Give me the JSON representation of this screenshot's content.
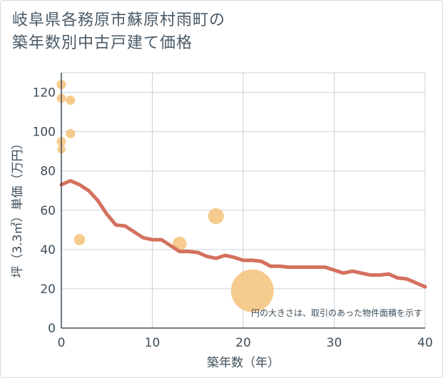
{
  "title_line1": "岐阜県各務原市蘇原村雨町の",
  "title_line2": "築年数別中古戸建て価格",
  "chart_data": {
    "type": "scatter",
    "xlabel": "築年数（年）",
    "ylabel": "坪（3.3㎡）単価（万円）",
    "xlim": [
      0,
      40
    ],
    "ylim": [
      0,
      130
    ],
    "xticks": [
      "0",
      "10",
      "20",
      "30",
      "40"
    ],
    "xtick_values": [
      0,
      10,
      20,
      30,
      40
    ],
    "yticks": [
      "0",
      "20",
      "40",
      "60",
      "80",
      "100",
      "120"
    ],
    "ytick_values": [
      0,
      20,
      40,
      60,
      80,
      100,
      120
    ],
    "grid": true,
    "note": "円の大きさは、取引のあった物件面積を示す",
    "colors": {
      "bubble": "#f5c27a",
      "line": "#d4705e",
      "grid": "#c9d3dc",
      "text": "#3d4e5a"
    },
    "bubbles": [
      {
        "x": 0,
        "y": 124,
        "size": 1
      },
      {
        "x": 0,
        "y": 117,
        "size": 1
      },
      {
        "x": 1,
        "y": 116,
        "size": 1
      },
      {
        "x": 1,
        "y": 99,
        "size": 1
      },
      {
        "x": 0,
        "y": 95,
        "size": 1
      },
      {
        "x": 0,
        "y": 91,
        "size": 0.9
      },
      {
        "x": 2,
        "y": 45,
        "size": 1.2
      },
      {
        "x": 13,
        "y": 43,
        "size": 1.5
      },
      {
        "x": 17,
        "y": 57,
        "size": 1.7
      },
      {
        "x": 21,
        "y": 19,
        "size": 4.6
      }
    ],
    "line": {
      "x": [
        0,
        1,
        2,
        3,
        4,
        5,
        6,
        7,
        8,
        9,
        10,
        11,
        12,
        13,
        14,
        15,
        16,
        17,
        18,
        19,
        20,
        21,
        22,
        23,
        24,
        25,
        26,
        27,
        28,
        29,
        30,
        31,
        32,
        33,
        34,
        35,
        36,
        37,
        38,
        39,
        40
      ],
      "y": [
        73,
        75,
        73,
        70,
        65,
        58,
        52.5,
        52,
        49,
        46,
        45,
        45,
        42,
        39,
        39,
        38.5,
        36.5,
        35.5,
        37,
        36,
        34.5,
        34.5,
        34,
        31.5,
        31.5,
        31,
        31,
        31,
        31,
        31,
        29.5,
        28,
        29,
        28,
        27,
        27,
        27.5,
        25.5,
        25,
        23,
        21
      ]
    }
  }
}
